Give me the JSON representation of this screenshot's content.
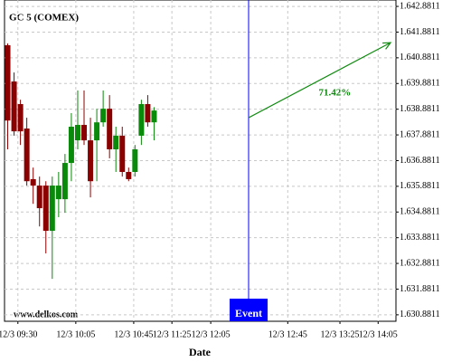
{
  "chart_data": {
    "type": "candlestick",
    "title": "GC 5 (COMEX)",
    "x_label": "Date",
    "watermark": "www.delkos.com",
    "x": [
      0,
      1,
      2,
      3,
      4,
      5,
      6,
      7,
      8,
      9,
      10,
      11,
      12,
      13,
      14,
      15,
      16,
      17,
      18,
      19,
      20,
      21,
      22,
      23
    ],
    "open": [
      1641.37,
      1639.96,
      1639.08,
      1638.13,
      1636.16,
      1635.91,
      1635.91,
      1634.15,
      1635.38,
      1635.38,
      1636.79,
      1637.67,
      1638.27,
      1637.67,
      1637.67,
      1638.37,
      1638.9,
      1637.32,
      1637.85,
      1636.44,
      1636.44,
      1637.85,
      1639.08,
      1638.37
    ],
    "high": [
      1641.44,
      1640.31,
      1639.25,
      1638.55,
      1636.61,
      1636.26,
      1636.08,
      1636.26,
      1636.44,
      1637.14,
      1638.73,
      1639.61,
      1639.61,
      1638.55,
      1638.9,
      1639.61,
      1639.43,
      1638.2,
      1638.2,
      1636.61,
      1637.49,
      1639.25,
      1639.43,
      1638.96
    ],
    "low": [
      1637.32,
      1637.85,
      1637.49,
      1635.91,
      1635.2,
      1634.32,
      1633.27,
      1632.28,
      1634.68,
      1634.85,
      1636.08,
      1637.32,
      1637.49,
      1635.45,
      1636.08,
      1638.2,
      1636.97,
      1636.44,
      1636.26,
      1636.08,
      1636.26,
      1637.49,
      1638.2,
      1637.67
    ],
    "close": [
      1638.44,
      1638.02,
      1638.02,
      1636.08,
      1635.91,
      1635.03,
      1634.15,
      1635.91,
      1635.91,
      1636.79,
      1638.2,
      1638.27,
      1637.67,
      1636.08,
      1638.37,
      1638.9,
      1637.32,
      1637.85,
      1636.44,
      1636.16,
      1637.32,
      1639.08,
      1638.37,
      1638.83
    ],
    "up_color": "#0a8a0a",
    "down_color": "#8b0000",
    "xlim": [
      -0.5,
      61
    ],
    "ylim": [
      1630.63,
      1643.13
    ],
    "xticks": [
      {
        "value": 1.6,
        "label": "12/3 09:30"
      },
      {
        "value": 10.7,
        "label": "12/3 10:05"
      },
      {
        "value": 19.8,
        "label": "12/3 10:45"
      },
      {
        "value": 25.8,
        "label": "12/3 11:25"
      },
      {
        "value": 31.9,
        "label": "12/3 12:05"
      },
      {
        "value": 44,
        "label": "12/3 12:45"
      },
      {
        "value": 52.2,
        "label": "12/3 13:25"
      },
      {
        "value": 58.2,
        "label": "12/3 14:05"
      }
    ],
    "yticks": [
      {
        "value": 1642.8811,
        "label": "1.642.8811"
      },
      {
        "value": 1641.8811,
        "label": "1.641.8811"
      },
      {
        "value": 1640.8811,
        "label": "1.640.8811"
      },
      {
        "value": 1639.8811,
        "label": "1.639.8811"
      },
      {
        "value": 1638.8811,
        "label": "1.638.8811"
      },
      {
        "value": 1637.8811,
        "label": "1.637.8811"
      },
      {
        "value": 1636.8811,
        "label": "1.636.8811"
      },
      {
        "value": 1635.8811,
        "label": "1.635.8811"
      },
      {
        "value": 1634.8811,
        "label": "1.634.8811"
      },
      {
        "value": 1633.8811,
        "label": "1.633.8811"
      },
      {
        "value": 1632.8811,
        "label": "1.632.8811"
      },
      {
        "value": 1631.8811,
        "label": "1.631.8811"
      },
      {
        "value": 1630.8811,
        "label": "1.630.8811"
      }
    ],
    "grid": true,
    "event": {
      "x": 37.85,
      "label": "Event",
      "color": "#0000ff"
    },
    "arrow": {
      "x": [
        37.85,
        60.15
      ],
      "y": [
        1638.55,
        1641.47
      ],
      "color": "#108a10"
    },
    "arrow_label": {
      "text": "71.42%",
      "x": 51.4,
      "y": 1639.5
    }
  }
}
